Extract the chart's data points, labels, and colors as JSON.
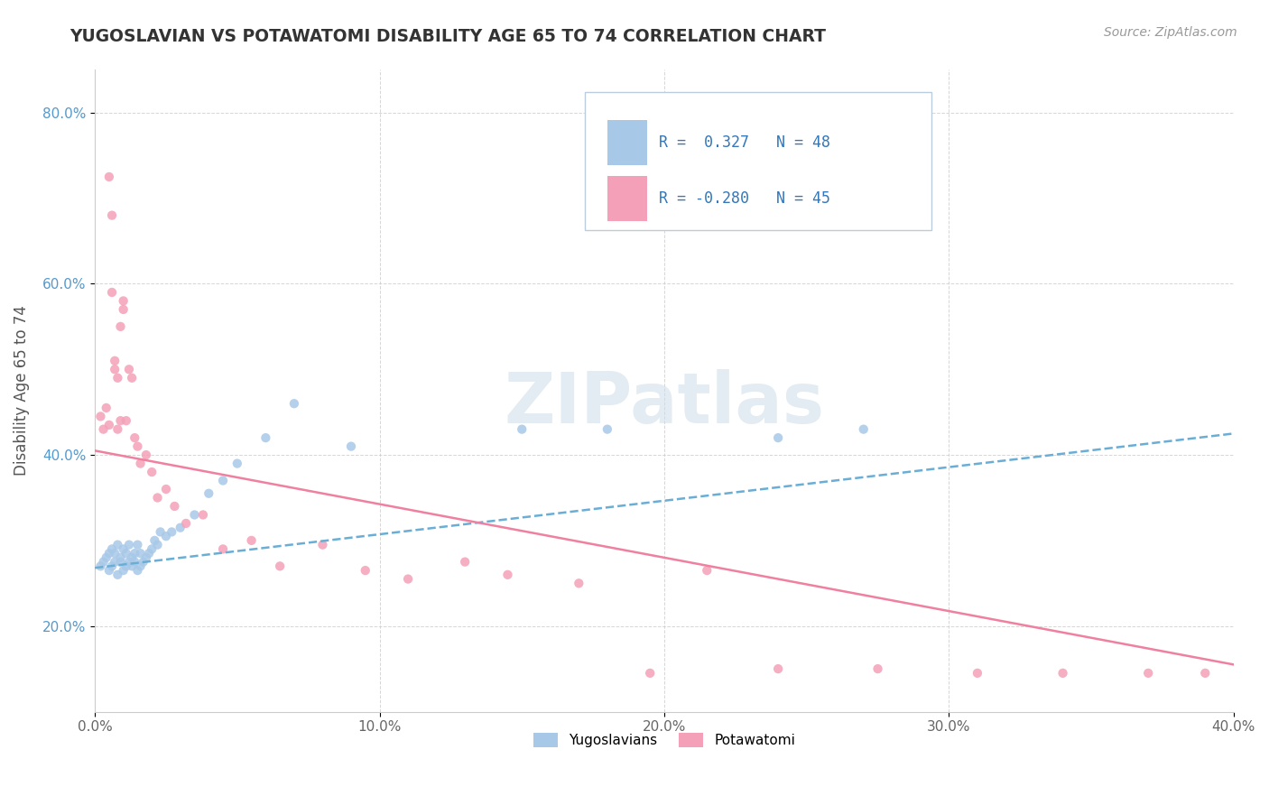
{
  "title": "YUGOSLAVIAN VS POTAWATOMI DISABILITY AGE 65 TO 74 CORRELATION CHART",
  "source": "Source: ZipAtlas.com",
  "ylabel": "Disability Age 65 to 74",
  "xlim": [
    0.0,
    0.4
  ],
  "ylim": [
    0.1,
    0.85
  ],
  "x_ticks": [
    0.0,
    0.1,
    0.2,
    0.3,
    0.4
  ],
  "x_tick_labels": [
    "0.0%",
    "10.0%",
    "20.0%",
    "30.0%",
    "40.0%"
  ],
  "y_ticks": [
    0.2,
    0.4,
    0.6,
    0.8
  ],
  "y_tick_labels": [
    "20.0%",
    "40.0%",
    "60.0%",
    "80.0%"
  ],
  "legend_labels": [
    "Yugoslavians",
    "Potawatomi"
  ],
  "R_yugo": 0.327,
  "N_yugo": 48,
  "R_pota": -0.28,
  "N_pota": 45,
  "color_yugo": "#a8c8e8",
  "color_pota": "#f4a0b8",
  "color_yugo_line": "#6aaed6",
  "color_pota_line": "#f080a0",
  "watermark": "ZIPatlas",
  "yugo_trendline": [
    0.268,
    0.425
  ],
  "pota_trendline": [
    0.405,
    0.155
  ],
  "yugo_scatter_x": [
    0.002,
    0.003,
    0.004,
    0.005,
    0.005,
    0.006,
    0.006,
    0.007,
    0.007,
    0.008,
    0.008,
    0.009,
    0.009,
    0.01,
    0.01,
    0.011,
    0.011,
    0.012,
    0.012,
    0.013,
    0.013,
    0.014,
    0.014,
    0.015,
    0.015,
    0.016,
    0.016,
    0.017,
    0.018,
    0.019,
    0.02,
    0.021,
    0.022,
    0.023,
    0.025,
    0.027,
    0.03,
    0.035,
    0.04,
    0.045,
    0.05,
    0.06,
    0.07,
    0.09,
    0.15,
    0.18,
    0.24,
    0.27
  ],
  "yugo_scatter_y": [
    0.27,
    0.275,
    0.28,
    0.265,
    0.285,
    0.27,
    0.29,
    0.275,
    0.285,
    0.26,
    0.295,
    0.275,
    0.28,
    0.265,
    0.29,
    0.27,
    0.285,
    0.275,
    0.295,
    0.27,
    0.28,
    0.275,
    0.285,
    0.265,
    0.295,
    0.27,
    0.285,
    0.275,
    0.28,
    0.285,
    0.29,
    0.3,
    0.295,
    0.31,
    0.305,
    0.31,
    0.315,
    0.33,
    0.355,
    0.37,
    0.39,
    0.42,
    0.46,
    0.41,
    0.43,
    0.43,
    0.42,
    0.43
  ],
  "pota_scatter_x": [
    0.002,
    0.003,
    0.004,
    0.005,
    0.005,
    0.006,
    0.006,
    0.007,
    0.007,
    0.008,
    0.008,
    0.009,
    0.009,
    0.01,
    0.01,
    0.011,
    0.012,
    0.013,
    0.014,
    0.015,
    0.016,
    0.018,
    0.02,
    0.022,
    0.025,
    0.028,
    0.032,
    0.038,
    0.045,
    0.055,
    0.065,
    0.08,
    0.095,
    0.11,
    0.13,
    0.145,
    0.17,
    0.195,
    0.215,
    0.24,
    0.275,
    0.31,
    0.34,
    0.37,
    0.39
  ],
  "pota_scatter_y": [
    0.445,
    0.43,
    0.455,
    0.435,
    0.725,
    0.68,
    0.59,
    0.5,
    0.51,
    0.49,
    0.43,
    0.55,
    0.44,
    0.58,
    0.57,
    0.44,
    0.5,
    0.49,
    0.42,
    0.41,
    0.39,
    0.4,
    0.38,
    0.35,
    0.36,
    0.34,
    0.32,
    0.33,
    0.29,
    0.3,
    0.27,
    0.295,
    0.265,
    0.255,
    0.275,
    0.26,
    0.25,
    0.145,
    0.265,
    0.15,
    0.15,
    0.145,
    0.145,
    0.145,
    0.145
  ]
}
